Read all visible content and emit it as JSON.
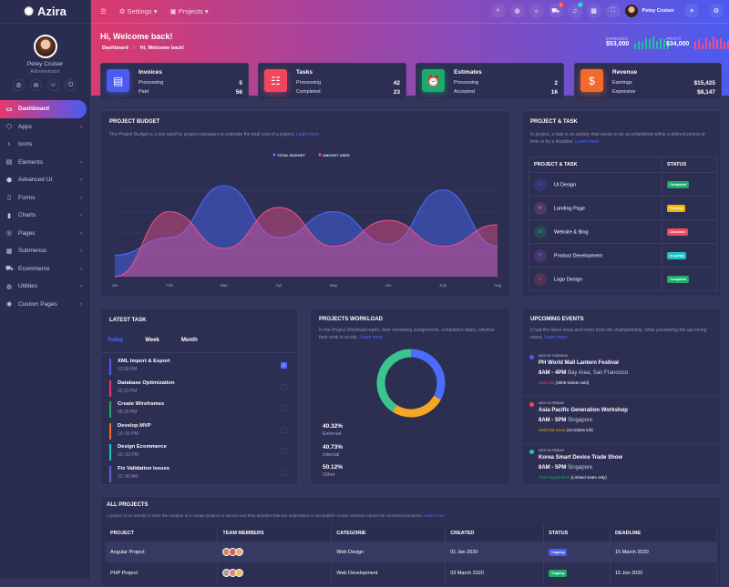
{
  "app": {
    "name": "Azira"
  },
  "profile": {
    "name": "Petey Cruiser",
    "role": "Administrator"
  },
  "sidebar": {
    "items": [
      {
        "label": "Dashboard",
        "icon": "monitor-icon",
        "active": true
      },
      {
        "label": "Apps",
        "icon": "cube-icon",
        "chevron": true
      },
      {
        "label": "Icons",
        "icon": "award-icon"
      },
      {
        "label": "Elements",
        "icon": "layers-icon",
        "chevron": true
      },
      {
        "label": "Advanced UI",
        "icon": "box-icon",
        "chevron": true
      },
      {
        "label": "Forms",
        "icon": "file-icon",
        "chevron": true
      },
      {
        "label": "Charts",
        "icon": "bar-chart-icon",
        "chevron": true
      },
      {
        "label": "Pages",
        "icon": "compass-icon",
        "chevron": true
      },
      {
        "label": "Submenus",
        "icon": "grid-icon",
        "chevron": true
      },
      {
        "label": "Ecommerce",
        "icon": "cart-icon",
        "chevron": true
      },
      {
        "label": "Utilities",
        "icon": "globe-icon",
        "chevron": true
      },
      {
        "label": "Custom Pages",
        "icon": "aperture-icon",
        "chevron": true
      }
    ]
  },
  "topnav": {
    "settings": "Settings",
    "projects": "Projects",
    "user": "Petey Cruiser",
    "cart_badge": "5",
    "bell_badge": "5"
  },
  "hero": {
    "title": "Hi, Welcome back!",
    "breadcrumb": [
      "Dashboard",
      "Hi, Welcome back!"
    ],
    "expenses": {
      "label": "EXPENSES",
      "value": "$53,000",
      "bars": [
        4,
        6,
        5,
        8,
        7,
        9,
        6,
        8,
        7,
        5
      ],
      "color": "#1ec0a0"
    },
    "profit": {
      "label": "PROFIT",
      "value": "$34,000",
      "bars": [
        5,
        7,
        4,
        8,
        6,
        9,
        7,
        8,
        5,
        6
      ],
      "color": "#f0508a"
    }
  },
  "stats": [
    {
      "title": "Invoices",
      "rows": [
        [
          "Processing",
          "5"
        ],
        [
          "Paid",
          "56"
        ]
      ],
      "color": "#4c5bf0",
      "icon": "invoice-icon"
    },
    {
      "title": "Tasks",
      "rows": [
        [
          "Processing",
          "42"
        ],
        [
          "Completed",
          "23"
        ]
      ],
      "color": "#f0475f",
      "icon": "clipboard-icon"
    },
    {
      "title": "Estimates",
      "rows": [
        [
          "Processing",
          "2"
        ],
        [
          "Accepted",
          "16"
        ]
      ],
      "color": "#1cab6b",
      "icon": "alarm-clock-icon"
    },
    {
      "title": "Revenue",
      "rows": [
        [
          "Earnings",
          "$15,425"
        ],
        [
          "Expensive",
          "$8,147"
        ]
      ],
      "color": "#f26a2c",
      "icon": "money-bag-icon"
    }
  ],
  "budget": {
    "title": "PROJECT BUDGET",
    "desc": "The Project Budget is a tool used by project managers to estimate the total cost of a project.",
    "link": "Learn more"
  },
  "chart_data": {
    "type": "area",
    "categories": [
      "Jan",
      "Feb",
      "Mar",
      "Apr",
      "May",
      "Jun",
      "July",
      "Aug"
    ],
    "series": [
      {
        "name": "TOTAL BUDGET",
        "values": [
          10,
          18,
          42,
          18,
          30,
          15,
          40,
          14
        ],
        "color": "#4c6bff"
      },
      {
        "name": "AMOUNT USED",
        "values": [
          0,
          30,
          13,
          32,
          14,
          26,
          14,
          24
        ],
        "color": "#f0508a"
      }
    ],
    "ylim": [
      0,
      50
    ],
    "grid": true,
    "legend": "top-center"
  },
  "project_task": {
    "title": "PROJECT & TASK",
    "desc": "In project, a task is an activity that needs to be accomplished within a defined period of time or by a deadline.",
    "link": "Learn more",
    "headers": [
      "PROJECT & TASK",
      "STATUS"
    ],
    "rows": [
      {
        "letter": "U",
        "name": "UI Design",
        "status": "Completed",
        "lc": "#4c5bf0",
        "status_color": "#1cab6b"
      },
      {
        "letter": "R",
        "name": "Landing Page",
        "status": "Pending",
        "lc": "#d46fa8",
        "status_color": "#f5b800"
      },
      {
        "letter": "W",
        "name": "Website & Blog",
        "status": "Cancelled",
        "lc": "#1cab6b",
        "status_color": "#f0475f"
      },
      {
        "letter": "P",
        "name": "Product Development",
        "status": "on-going",
        "lc": "#a259e0",
        "status_color": "#1cc4c4"
      },
      {
        "letter": "L",
        "name": "Logo Design",
        "status": "Completed",
        "lc": "#f0475f",
        "status_color": "#1cab6b"
      }
    ]
  },
  "latest_task": {
    "title": "LATEST TASK",
    "tabs": [
      "Today",
      "Week",
      "Month"
    ],
    "active_tab": "Today",
    "items": [
      {
        "name": "XML Import & Export",
        "time": "12:00 PM",
        "color": "#4c5bf0",
        "checked": true
      },
      {
        "name": "Database Optimization",
        "time": "02:13 PM",
        "color": "#e7386d"
      },
      {
        "name": "Create Wireframes",
        "time": "06:20 PM",
        "color": "#1cab6b"
      },
      {
        "name": "Develop MVP",
        "time": "10: 00 PM",
        "color": "#f26a2c"
      },
      {
        "name": "Design Ecommerce",
        "time": "10: 00 PM",
        "color": "#1cc4c4"
      },
      {
        "name": "Fix Validation Issues",
        "time": "12: 00 AM",
        "color": "#6a5bd8"
      }
    ]
  },
  "workload": {
    "title": "PROJECTS WORKLOAD",
    "desc": "In the Project Workload report, their remaining assignments, completion dates, whether their work is at-risk.",
    "link": "Learn more",
    "donut": [
      {
        "value": 33,
        "color": "#4c6bff"
      },
      {
        "value": 26,
        "color": "#f5a623"
      },
      {
        "value": 41,
        "color": "#3cc48e"
      }
    ],
    "stats": [
      {
        "value": "40.32%",
        "label": "External",
        "color": "#4c6bff",
        "spark": [
          1,
          3,
          5,
          5,
          3,
          4,
          3,
          5,
          4
        ]
      },
      {
        "value": "40.73%",
        "label": "Internal",
        "color": "#f5a623",
        "spark": [
          1,
          3,
          3,
          2,
          4,
          3,
          3,
          5,
          3
        ]
      },
      {
        "value": "50.12%",
        "label": "Other",
        "color": "#3cc48e",
        "spark": [
          1,
          3,
          3,
          2,
          4,
          3,
          3,
          5,
          3
        ]
      }
    ]
  },
  "events": {
    "title": "UPCOMING EVENTS",
    "desc": "It had the latest news and notes from the championship, while previewing the upcoming event.",
    "link": "Learn more",
    "items": [
      {
        "date": "NOV 20 TUESDAY",
        "name": "PH World Mall Lantern Festival",
        "time": "8AM - 4PM",
        "place": "Bay Area, San Francisco",
        "status": "Sold Out",
        "note": "(3000 tickets sold)",
        "dot": "#4c5bf0",
        "status_color": "#f0475f"
      },
      {
        "date": "NOV 23 FRIDAY",
        "name": "Asia Pacific Generation Workshop",
        "time": "8AM - 5PM",
        "place": "Singapore",
        "status": "Sold Out Soon",
        "note": "(12 tickets left)",
        "dot": "#f0475f",
        "status_color": "#f5a623"
      },
      {
        "date": "NOV 23 FRIDAY",
        "name": "Korea Smart Device Trade Show",
        "time": "8AM - 5PM",
        "place": "Singapore",
        "status": "Free Registration",
        "note": "(Limited seats only)",
        "dot": "#1cc4c4",
        "status_color": "#1cab6b"
      }
    ]
  },
  "all_projects": {
    "title": "ALL PROJECTS",
    "desc": "A project is an activity to meet the creation of a unique product or service and thus activities that are undertaken to accomplish routine activities cannot be considered projects.",
    "link": "Learn more",
    "headers": [
      "PROJECT",
      "TEAM MEMBERS",
      "CATEGORIE",
      "CREATED",
      "STATUS",
      "DEADLINE"
    ],
    "rows": [
      {
        "project": "Angular Project",
        "category": "Web Design",
        "created": "01 Jan 2020",
        "status": "Ongoing",
        "status_color": "#4c5bf0",
        "deadline": "15 March 2020"
      },
      {
        "project": "PHP Project",
        "category": "Web Development",
        "created": "03 March 2020",
        "status": "Ongoing",
        "status_color": "#1cab6b",
        "deadline": "15 Jun 2020"
      }
    ]
  }
}
